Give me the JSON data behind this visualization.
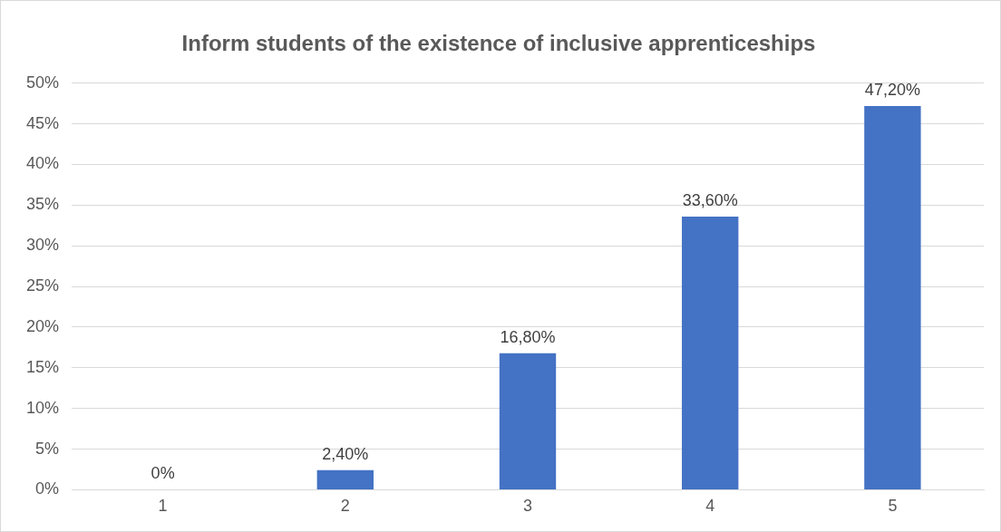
{
  "chart_data": {
    "type": "bar",
    "title": "Inform students of the existence of inclusive apprenticeships",
    "categories": [
      "1",
      "2",
      "3",
      "4",
      "5"
    ],
    "values": [
      0,
      2.4,
      16.8,
      33.6,
      47.2
    ],
    "value_labels": [
      "0%",
      "2,40%",
      "16,80%",
      "33,60%",
      "47,20%"
    ],
    "color": "#4472c4",
    "ylim": [
      0,
      50
    ],
    "yticks": [
      {
        "value": 0,
        "label": "0%"
      },
      {
        "value": 5,
        "label": "5%"
      },
      {
        "value": 10,
        "label": "10%"
      },
      {
        "value": 15,
        "label": "15%"
      },
      {
        "value": 20,
        "label": "20%"
      },
      {
        "value": 25,
        "label": "25%"
      },
      {
        "value": 30,
        "label": "30%"
      },
      {
        "value": 35,
        "label": "35%"
      },
      {
        "value": 40,
        "label": "40%"
      },
      {
        "value": 45,
        "label": "45%"
      },
      {
        "value": 50,
        "label": "50%"
      }
    ],
    "grid": "y",
    "legend": false
  }
}
